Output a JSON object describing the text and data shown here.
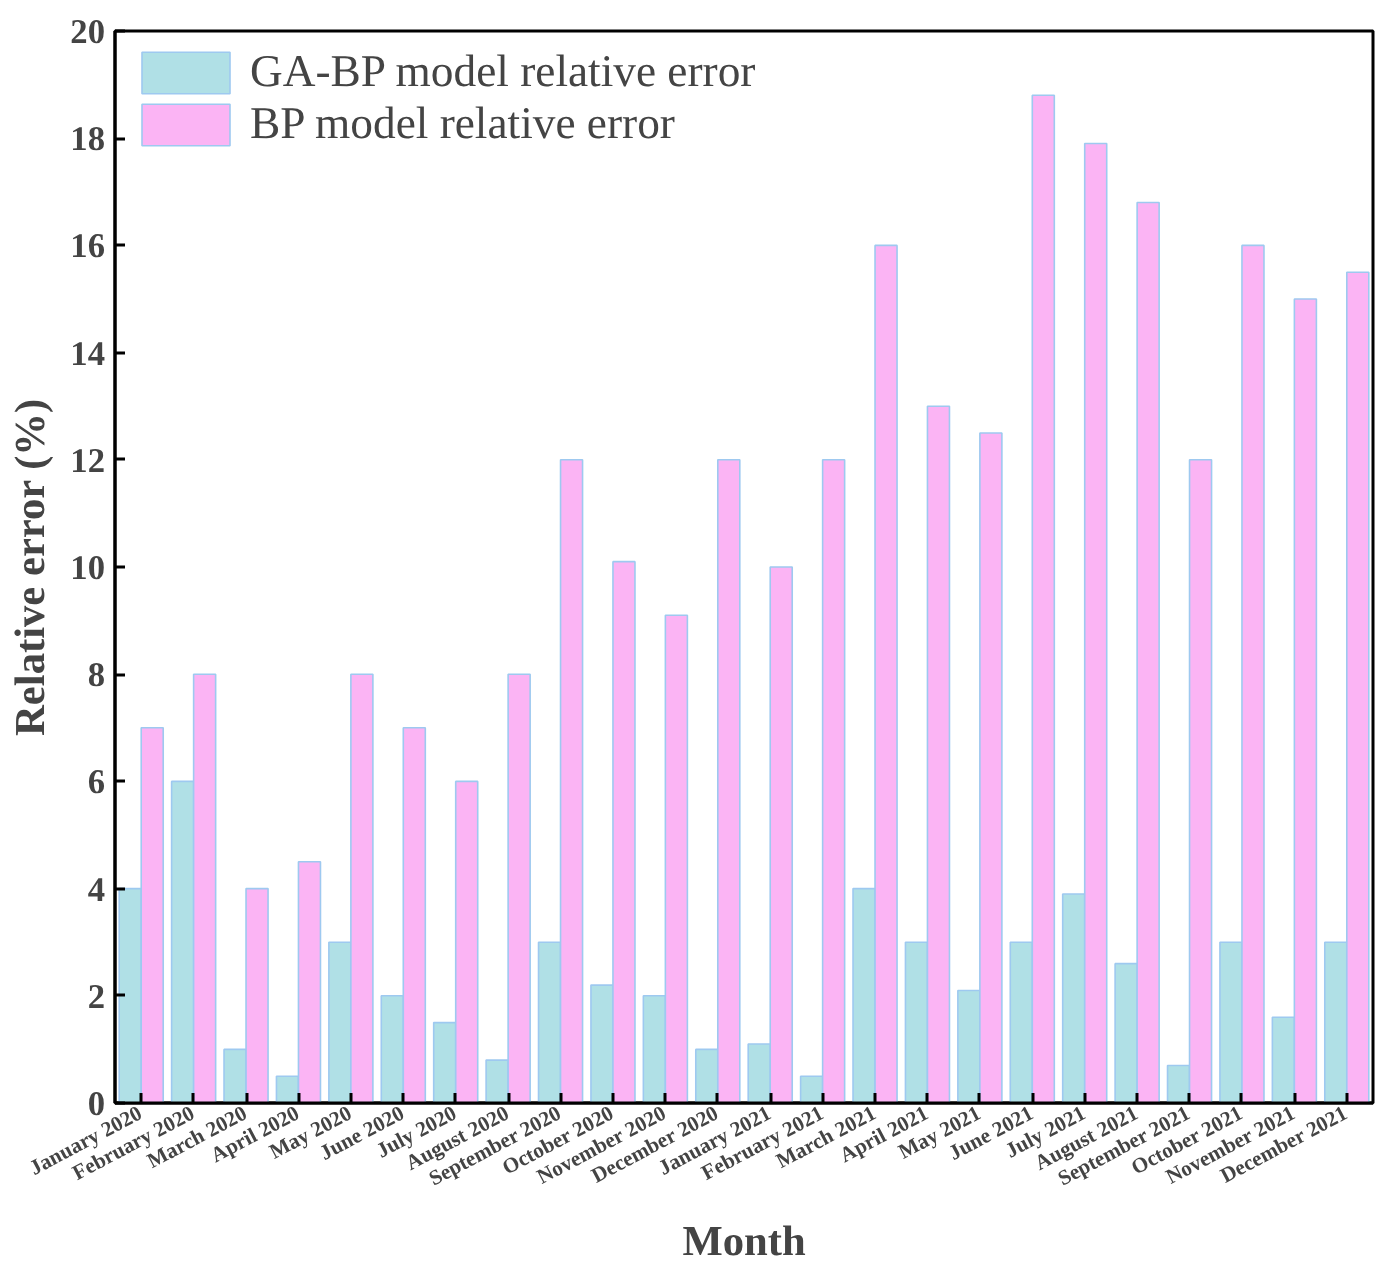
{
  "chart_data": {
    "type": "bar",
    "xlabel": "Month",
    "ylabel": "Relative error (%)",
    "categories": [
      "January 2020",
      "February 2020",
      "March 2020",
      "April 2020",
      "May 2020",
      "June 2020",
      "July 2020",
      "August 2020",
      "September 2020",
      "October 2020",
      "November 2020",
      "December 2020",
      "January 2021",
      "February 2021",
      "March 2021",
      "April 2021",
      "May 2021",
      "June 2021",
      "July 2021",
      "August 2021",
      "September 2021",
      "October 2021",
      "November 2021",
      "December 2021"
    ],
    "series": [
      {
        "name": "GA-BP model relative error",
        "color": "#b0e0e6",
        "values": [
          4,
          6,
          1,
          0.5,
          3,
          2,
          1.5,
          0.8,
          3,
          2.2,
          2,
          1,
          1.1,
          0.5,
          4,
          3,
          2.1,
          3,
          3.9,
          2.6,
          0.7,
          3,
          1.6,
          3
        ]
      },
      {
        "name": "BP model relative error",
        "color": "#fbb4f4",
        "values": [
          7,
          8,
          4,
          4.5,
          8,
          7,
          6,
          8,
          12,
          10.1,
          9.1,
          12,
          10,
          12,
          16,
          13,
          12.5,
          18.8,
          17.9,
          16.8,
          12,
          16,
          15,
          15.5
        ]
      }
    ],
    "ylim": [
      0,
      20
    ],
    "yticks": [
      0,
      2,
      4,
      6,
      8,
      10,
      12,
      14,
      16,
      18,
      20
    ],
    "grid": false,
    "legend": "top left"
  }
}
